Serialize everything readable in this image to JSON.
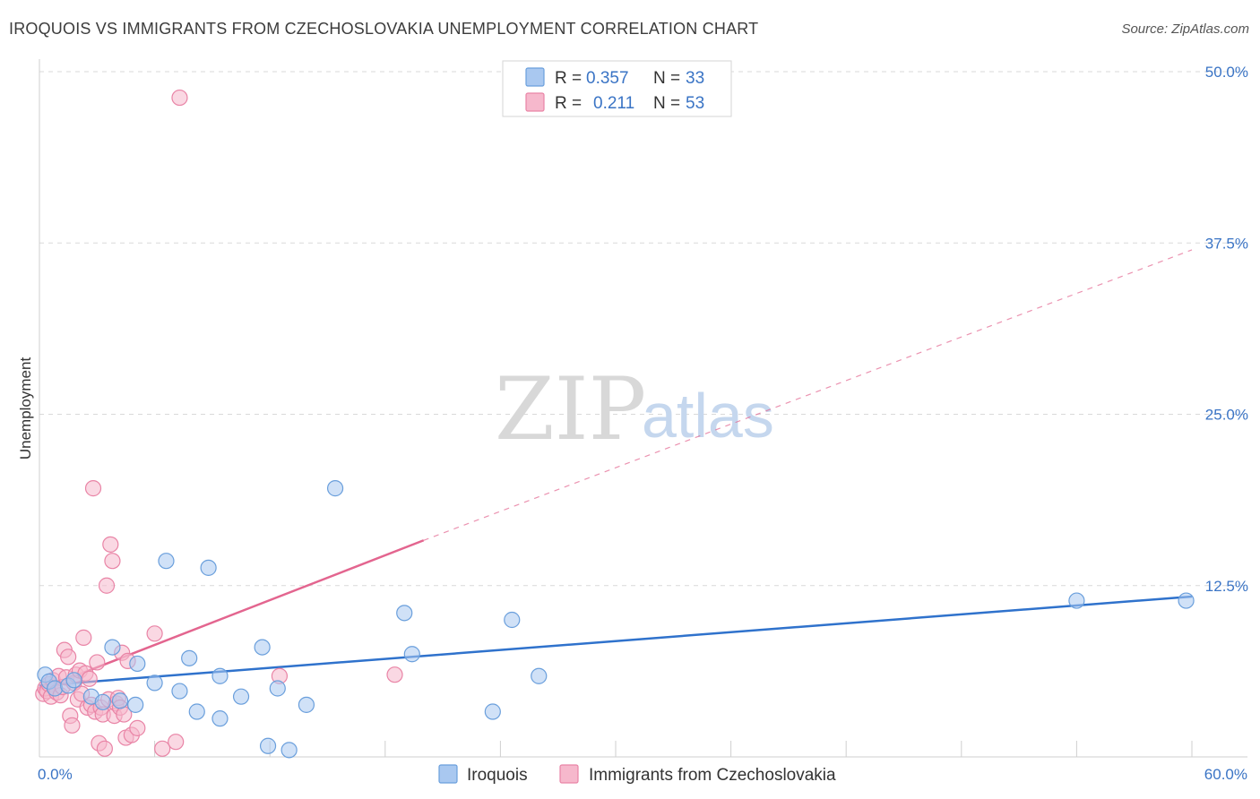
{
  "title": "IROQUOIS VS IMMIGRANTS FROM CZECHOSLOVAKIA UNEMPLOYMENT CORRELATION CHART",
  "source": "Source: ZipAtlas.com",
  "watermark": {
    "zip": "ZIP",
    "atlas": "atlas"
  },
  "colors": {
    "blue_fill": "#a9c8f0",
    "blue_stroke": "#6a9fdc",
    "blue_line": "#2f72cc",
    "pink_fill": "#f6b8cc",
    "pink_stroke": "#e984a6",
    "pink_line": "#e3658f",
    "tick_text": "#3a74c5",
    "grid": "#d9d9d9"
  },
  "legend": {
    "rows": [
      {
        "r_label": "R =",
        "r_value": "0.357",
        "n_label": "N =",
        "n_value": "33"
      },
      {
        "r_label": "R =",
        "r_value": "0.211",
        "n_label": "N =",
        "n_value": "53"
      }
    ]
  },
  "bottom_legend": [
    "Iroquois",
    "Immigrants from Czechoslovakia"
  ],
  "chart_data": {
    "type": "scatter",
    "title": "IROQUOIS VS IMMIGRANTS FROM CZECHOSLOVAKIA UNEMPLOYMENT CORRELATION CHART",
    "xlabel": "",
    "ylabel": "Unemployment",
    "xlim": [
      0,
      60
    ],
    "ylim": [
      0,
      50
    ],
    "x_tick_labels": [
      "0.0%",
      "60.0%"
    ],
    "y_ticks": [
      12.5,
      25.0,
      37.5,
      50.0
    ],
    "y_tick_labels": [
      "12.5%",
      "25.0%",
      "37.5%",
      "50.0%"
    ],
    "grid": true,
    "series": [
      {
        "name": "Iroquois",
        "r": 0.357,
        "n": 33,
        "points": [
          [
            0.3,
            6.0
          ],
          [
            0.5,
            5.5
          ],
          [
            0.8,
            5.0
          ],
          [
            1.5,
            5.2
          ],
          [
            1.8,
            5.6
          ],
          [
            2.7,
            4.4
          ],
          [
            3.3,
            4.0
          ],
          [
            3.8,
            8.0
          ],
          [
            4.2,
            4.1
          ],
          [
            5.0,
            3.8
          ],
          [
            5.1,
            6.8
          ],
          [
            6.0,
            5.4
          ],
          [
            6.6,
            14.3
          ],
          [
            7.3,
            4.8
          ],
          [
            7.8,
            7.2
          ],
          [
            8.2,
            3.3
          ],
          [
            8.8,
            13.8
          ],
          [
            9.4,
            2.8
          ],
          [
            9.4,
            5.9
          ],
          [
            10.5,
            4.4
          ],
          [
            11.6,
            8.0
          ],
          [
            11.9,
            0.8
          ],
          [
            12.4,
            5.0
          ],
          [
            13.0,
            0.5
          ],
          [
            13.9,
            3.8
          ],
          [
            15.4,
            19.6
          ],
          [
            19.0,
            10.5
          ],
          [
            19.4,
            7.5
          ],
          [
            23.6,
            3.3
          ],
          [
            24.6,
            10.0
          ],
          [
            26.0,
            5.9
          ],
          [
            54.0,
            11.4
          ],
          [
            59.7,
            11.4
          ]
        ],
        "trend": {
          "x": [
            0,
            60
          ],
          "y": [
            5.2,
            11.7
          ],
          "style": "solid"
        }
      },
      {
        "name": "Immigrants from Czechoslovakia",
        "r": 0.211,
        "n": 53,
        "points": [
          [
            0.2,
            4.6
          ],
          [
            0.3,
            5.0
          ],
          [
            0.4,
            4.8
          ],
          [
            0.5,
            5.3
          ],
          [
            0.6,
            4.4
          ],
          [
            0.7,
            5.6
          ],
          [
            0.8,
            5.0
          ],
          [
            0.9,
            4.7
          ],
          [
            1.0,
            5.9
          ],
          [
            1.1,
            4.5
          ],
          [
            1.2,
            5.1
          ],
          [
            1.3,
            7.8
          ],
          [
            1.4,
            5.8
          ],
          [
            1.5,
            7.3
          ],
          [
            1.6,
            3.0
          ],
          [
            1.7,
            2.3
          ],
          [
            1.8,
            5.4
          ],
          [
            1.9,
            6.0
          ],
          [
            2.0,
            4.2
          ],
          [
            2.1,
            6.3
          ],
          [
            2.2,
            4.6
          ],
          [
            2.3,
            8.7
          ],
          [
            2.4,
            6.1
          ],
          [
            2.5,
            3.6
          ],
          [
            2.6,
            5.7
          ],
          [
            2.7,
            3.8
          ],
          [
            2.8,
            19.6
          ],
          [
            2.9,
            3.3
          ],
          [
            3.0,
            6.9
          ],
          [
            3.1,
            1.0
          ],
          [
            3.2,
            3.6
          ],
          [
            3.3,
            3.1
          ],
          [
            3.4,
            0.6
          ],
          [
            3.5,
            12.5
          ],
          [
            3.6,
            4.2
          ],
          [
            3.7,
            15.5
          ],
          [
            3.8,
            14.3
          ],
          [
            3.9,
            3.0
          ],
          [
            4.0,
            3.9
          ],
          [
            4.1,
            4.3
          ],
          [
            4.2,
            3.6
          ],
          [
            4.3,
            7.6
          ],
          [
            4.4,
            3.1
          ],
          [
            4.5,
            1.4
          ],
          [
            4.6,
            7.0
          ],
          [
            4.8,
            1.6
          ],
          [
            5.1,
            2.1
          ],
          [
            6.0,
            9.0
          ],
          [
            6.4,
            0.6
          ],
          [
            7.1,
            1.1
          ],
          [
            7.3,
            48.1
          ],
          [
            12.5,
            5.9
          ],
          [
            18.5,
            6.0
          ]
        ],
        "trend": {
          "x": [
            0,
            20
          ],
          "y": [
            4.9,
            15.8
          ],
          "style": "solid"
        },
        "trend_extension": {
          "x": [
            20,
            60
          ],
          "y": [
            15.8,
            37.0
          ],
          "style": "dashed"
        }
      }
    ]
  }
}
